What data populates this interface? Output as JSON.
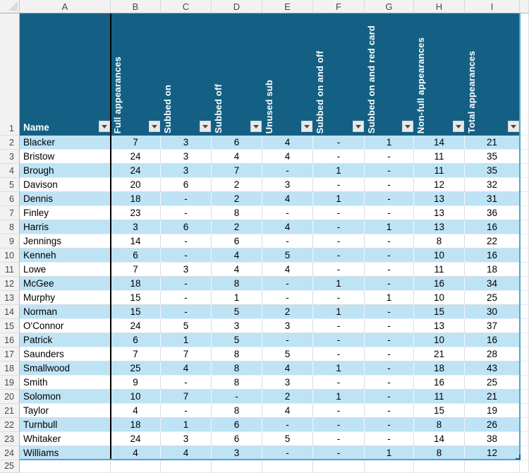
{
  "sheet": {
    "column_letters": [
      "A",
      "B",
      "C",
      "D",
      "E",
      "F",
      "G",
      "H",
      "I"
    ],
    "row_numbers": [
      "1",
      "2",
      "3",
      "4",
      "5",
      "6",
      "7",
      "8",
      "9",
      "10",
      "11",
      "12",
      "13",
      "14",
      "15",
      "16",
      "17",
      "18",
      "19",
      "20",
      "21",
      "22",
      "23",
      "24",
      "25"
    ],
    "colors": {
      "header_bg": "#146085",
      "band_row_bg": "#BEE3F5",
      "grid_line": "#D8DEE3",
      "table_border": "#4FA5D8",
      "divider_line": "#000000"
    }
  },
  "table": {
    "name_header": "Name",
    "stat_headers": [
      "Full appearances",
      "Subbed on",
      "Subbed off",
      "Unused sub",
      "Subbed on and off",
      "Subbed on and red card",
      "Non-full appearances",
      "Total appearances"
    ],
    "players": [
      {
        "name": "Blacker",
        "values": [
          "7",
          "3",
          "6",
          "4",
          "-",
          "1",
          "14",
          "21"
        ]
      },
      {
        "name": "Bristow",
        "values": [
          "24",
          "3",
          "4",
          "4",
          "-",
          "-",
          "11",
          "35"
        ]
      },
      {
        "name": "Brough",
        "values": [
          "24",
          "3",
          "7",
          "-",
          "1",
          "-",
          "11",
          "35"
        ]
      },
      {
        "name": "Davison",
        "values": [
          "20",
          "6",
          "2",
          "3",
          "-",
          "-",
          "12",
          "32"
        ]
      },
      {
        "name": "Dennis",
        "values": [
          "18",
          "-",
          "2",
          "4",
          "1",
          "-",
          "13",
          "31"
        ]
      },
      {
        "name": "Finley",
        "values": [
          "23",
          "-",
          "8",
          "-",
          "-",
          "-",
          "13",
          "36"
        ]
      },
      {
        "name": "Harris",
        "values": [
          "3",
          "6",
          "2",
          "4",
          "-",
          "1",
          "13",
          "16"
        ]
      },
      {
        "name": "Jennings",
        "values": [
          "14",
          "-",
          "6",
          "-",
          "-",
          "-",
          "8",
          "22"
        ]
      },
      {
        "name": "Kenneh",
        "values": [
          "6",
          "-",
          "4",
          "5",
          "-",
          "-",
          "10",
          "16"
        ]
      },
      {
        "name": "Lowe",
        "values": [
          "7",
          "3",
          "4",
          "4",
          "-",
          "-",
          "11",
          "18"
        ]
      },
      {
        "name": "McGee",
        "values": [
          "18",
          "-",
          "8",
          "-",
          "1",
          "-",
          "16",
          "34"
        ]
      },
      {
        "name": "Murphy",
        "values": [
          "15",
          "-",
          "1",
          "-",
          "-",
          "1",
          "10",
          "25"
        ]
      },
      {
        "name": "Norman",
        "values": [
          "15",
          "-",
          "5",
          "2",
          "1",
          "-",
          "15",
          "30"
        ]
      },
      {
        "name": "O'Connor",
        "values": [
          "24",
          "5",
          "3",
          "3",
          "-",
          "-",
          "13",
          "37"
        ]
      },
      {
        "name": "Patrick",
        "values": [
          "6",
          "1",
          "5",
          "-",
          "-",
          "-",
          "10",
          "16"
        ]
      },
      {
        "name": "Saunders",
        "values": [
          "7",
          "7",
          "8",
          "5",
          "-",
          "-",
          "21",
          "28"
        ]
      },
      {
        "name": "Smallwood",
        "values": [
          "25",
          "4",
          "8",
          "4",
          "1",
          "-",
          "18",
          "43"
        ]
      },
      {
        "name": "Smith",
        "values": [
          "9",
          "-",
          "8",
          "3",
          "-",
          "-",
          "16",
          "25"
        ]
      },
      {
        "name": "Solomon",
        "values": [
          "10",
          "7",
          "-",
          "2",
          "1",
          "-",
          "11",
          "21"
        ]
      },
      {
        "name": "Taylor",
        "values": [
          "4",
          "-",
          "8",
          "4",
          "-",
          "-",
          "15",
          "19"
        ]
      },
      {
        "name": "Turnbull",
        "values": [
          "18",
          "1",
          "6",
          "-",
          "-",
          "-",
          "8",
          "26"
        ]
      },
      {
        "name": "Whitaker",
        "values": [
          "24",
          "3",
          "6",
          "5",
          "-",
          "-",
          "14",
          "38"
        ]
      },
      {
        "name": "Williams",
        "values": [
          "4",
          "4",
          "3",
          "-",
          "-",
          "1",
          "8",
          "12"
        ]
      }
    ]
  }
}
